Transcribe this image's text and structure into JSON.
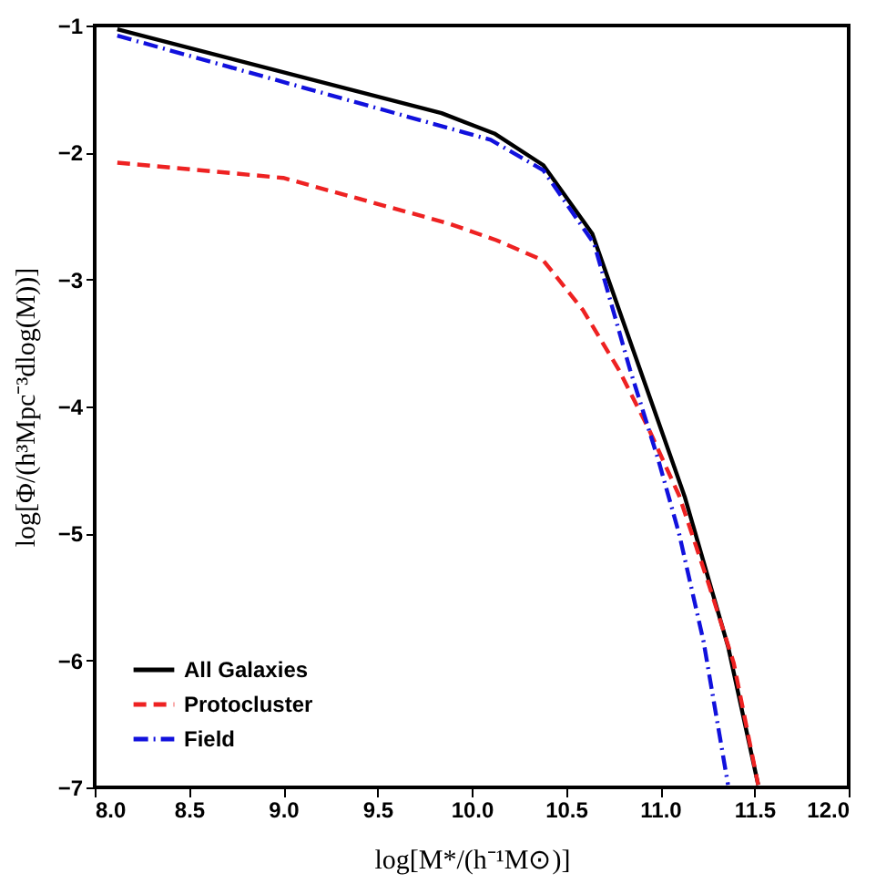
{
  "chart_data": {
    "type": "line",
    "xlabel": "log[M*/(h⁻¹M⊙)]",
    "ylabel": "log[Φ/(h³Mpc⁻³dlog(M))]",
    "xlim": [
      8.0,
      12.0
    ],
    "xticks": [
      {
        "value": 8.0,
        "label": "8.0"
      },
      8.5,
      {
        "value": 9.0,
        "label": "9.0"
      },
      9.5,
      {
        "value": 10.0,
        "label": "10.0"
      },
      10.5,
      {
        "value": 11.0,
        "label": "11.0"
      },
      11.5,
      {
        "value": 12.0,
        "label": "12.0"
      }
    ],
    "ylim": [
      -7,
      -1
    ],
    "yticks": [
      -7,
      -6,
      -5,
      -4,
      -3,
      -2,
      -1
    ],
    "grid": false,
    "legend": "bottom left",
    "marker": "none",
    "series": [
      {
        "name": "All Galaxies",
        "color": "#000000",
        "line_style": "solid",
        "x": [
          8.12,
          9.84,
          10.12,
          10.38,
          10.64,
          11.13,
          11.36,
          11.52
        ],
        "values": [
          -1.03,
          -1.69,
          -1.85,
          -2.1,
          -2.64,
          -4.71,
          -5.89,
          -6.98
        ]
      },
      {
        "name": "Protocluster",
        "color": "#ee2222",
        "line_style": "dashed",
        "x": [
          8.12,
          9.0,
          9.88,
          10.13,
          10.38,
          10.59,
          10.78,
          10.94,
          11.1,
          11.26,
          11.39,
          11.52
        ],
        "values": [
          -2.08,
          -2.2,
          -2.56,
          -2.69,
          -2.85,
          -3.24,
          -3.71,
          -4.18,
          -4.7,
          -5.41,
          -6.02,
          -6.98
        ]
      },
      {
        "name": "Field",
        "color": "#1111dd",
        "line_style": "dashdot",
        "x": [
          8.12,
          10.1,
          10.38,
          10.65,
          10.84,
          10.99,
          11.1,
          11.23,
          11.36
        ],
        "values": [
          -1.08,
          -1.9,
          -2.14,
          -2.72,
          -3.71,
          -4.42,
          -5.0,
          -5.85,
          -6.98
        ]
      }
    ]
  }
}
